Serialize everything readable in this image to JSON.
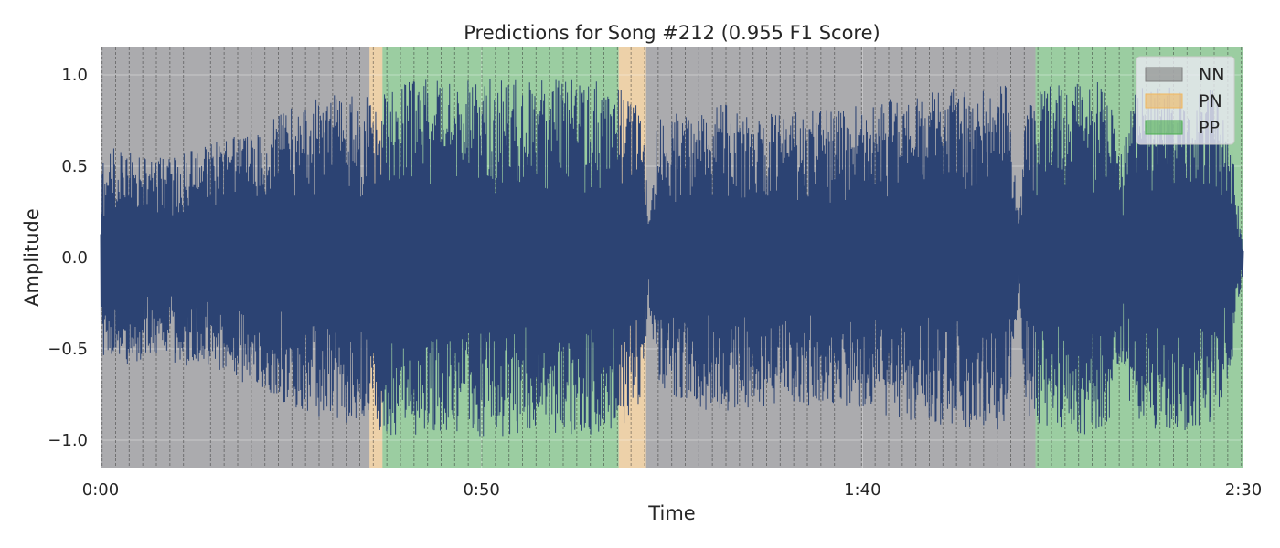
{
  "chart_data": {
    "type": "area",
    "title": "Predictions for Song #212 (0.955 F1 Score)",
    "xlabel": "Time",
    "ylabel": "Amplitude",
    "xlim": [
      0,
      150
    ],
    "ylim": [
      -1.15,
      1.15
    ],
    "x_ticks": [
      {
        "value": 0,
        "label": "0:00"
      },
      {
        "value": 50,
        "label": "0:50"
      },
      {
        "value": 100,
        "label": "1:40"
      },
      {
        "value": 150,
        "label": "2:30"
      }
    ],
    "y_ticks": [
      {
        "value": 1.0,
        "label": "1.0"
      },
      {
        "value": 0.5,
        "label": "0.5"
      },
      {
        "value": 0.0,
        "label": "0.0"
      },
      {
        "value": -0.5,
        "label": "−0.5"
      },
      {
        "value": -1.0,
        "label": "−1.0"
      }
    ],
    "grid": true,
    "legend_position": "top-right",
    "legend": [
      {
        "key": "NN",
        "label": "NN",
        "color": "#808080"
      },
      {
        "key": "PN",
        "label": "PN",
        "color": "#f0b860"
      },
      {
        "key": "PP",
        "label": "PP",
        "color": "#4caf50"
      }
    ],
    "regions": [
      {
        "label": "NN",
        "start": 0,
        "end": 35.3
      },
      {
        "label": "PN",
        "start": 35.3,
        "end": 37.0
      },
      {
        "label": "PP",
        "start": 37.0,
        "end": 68.0
      },
      {
        "label": "PN",
        "start": 68.0,
        "end": 71.6
      },
      {
        "label": "NN",
        "start": 71.6,
        "end": 122.7
      },
      {
        "label": "PP",
        "start": 122.7,
        "end": 150
      }
    ],
    "waveform": {
      "color": "#2c4373",
      "envelope": [
        {
          "t": 0,
          "amp": 0.35
        },
        {
          "t": 0.5,
          "amp": 0.6
        },
        {
          "t": 3,
          "amp": 0.6
        },
        {
          "t": 7,
          "amp": 0.55
        },
        {
          "t": 12,
          "amp": 0.6
        },
        {
          "t": 16,
          "amp": 0.65
        },
        {
          "t": 20,
          "amp": 0.7
        },
        {
          "t": 25,
          "amp": 0.82
        },
        {
          "t": 29,
          "amp": 0.88
        },
        {
          "t": 33,
          "amp": 0.92
        },
        {
          "t": 35.3,
          "amp": 0.88
        },
        {
          "t": 37,
          "amp": 0.97
        },
        {
          "t": 50,
          "amp": 0.98
        },
        {
          "t": 66,
          "amp": 0.97
        },
        {
          "t": 69,
          "amp": 0.9
        },
        {
          "t": 71,
          "amp": 0.8
        },
        {
          "t": 72,
          "amp": 0.25
        },
        {
          "t": 73,
          "amp": 0.75
        },
        {
          "t": 80,
          "amp": 0.85
        },
        {
          "t": 90,
          "amp": 0.8
        },
        {
          "t": 98,
          "amp": 0.82
        },
        {
          "t": 105,
          "amp": 0.88
        },
        {
          "t": 110,
          "amp": 0.92
        },
        {
          "t": 119,
          "amp": 0.95
        },
        {
          "t": 120.5,
          "amp": 0.2
        },
        {
          "t": 121.5,
          "amp": 0.85
        },
        {
          "t": 124,
          "amp": 0.95
        },
        {
          "t": 132,
          "amp": 0.98
        },
        {
          "t": 134,
          "amp": 0.6
        },
        {
          "t": 136,
          "amp": 0.95
        },
        {
          "t": 146,
          "amp": 0.95
        },
        {
          "t": 148.5,
          "amp": 0.6
        },
        {
          "t": 150,
          "amp": 0.05
        }
      ]
    }
  }
}
